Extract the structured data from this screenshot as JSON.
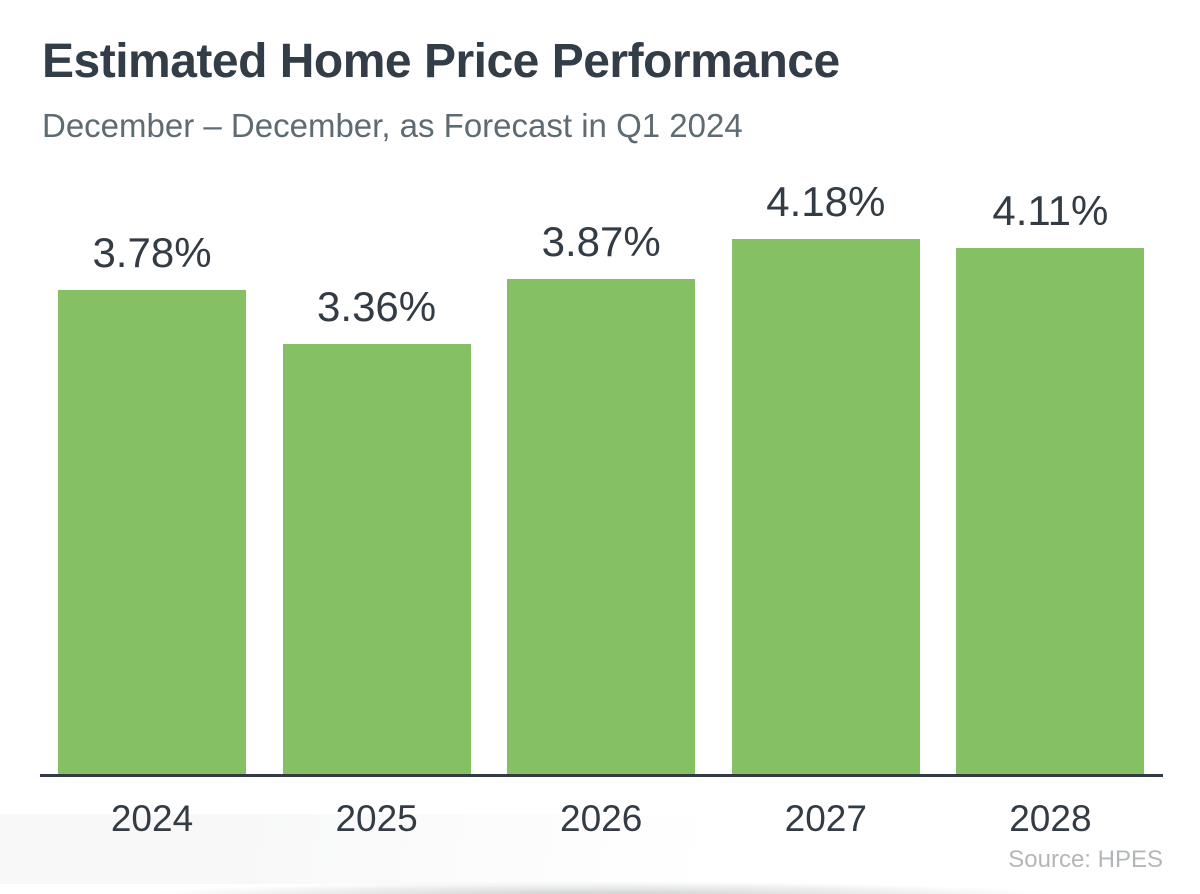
{
  "chart_data": {
    "type": "bar",
    "title": "Estimated Home Price Performance",
    "subtitle": "December – December, as Forecast in Q1 2024",
    "categories": [
      "2024",
      "2025",
      "2026",
      "2027",
      "2028"
    ],
    "values": [
      3.78,
      3.36,
      3.87,
      4.18,
      4.11
    ],
    "value_labels": [
      "3.78%",
      "3.36%",
      "3.87%",
      "4.18%",
      "4.11%"
    ],
    "source": "Source: HPES",
    "bar_color": "#85c065",
    "xlabel": "",
    "ylabel": "",
    "ylim": [
      0,
      4.7
    ],
    "grid": false,
    "legend": false
  }
}
